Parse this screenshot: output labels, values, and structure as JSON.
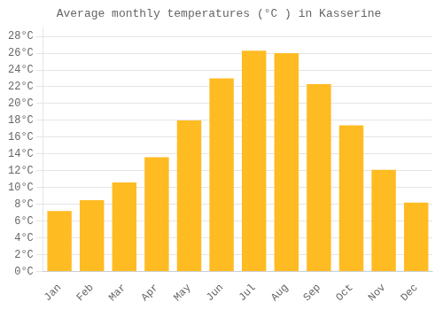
{
  "chart_data": {
    "type": "bar",
    "title": "Average monthly temperatures (°C ) in Kasserine",
    "categories": [
      "Jan",
      "Feb",
      "Mar",
      "Apr",
      "May",
      "Jun",
      "Jul",
      "Aug",
      "Sep",
      "Oct",
      "Nov",
      "Dec"
    ],
    "values": [
      7.2,
      8.5,
      10.6,
      13.6,
      18.0,
      23.0,
      26.3,
      26.0,
      22.3,
      17.4,
      12.1,
      8.2
    ],
    "color": "#FFBB22",
    "ylim": [
      0,
      29
    ],
    "yticks": [
      {
        "value": 0,
        "label": "0°C"
      },
      {
        "value": 2,
        "label": "2°C"
      },
      {
        "value": 4,
        "label": "4°C"
      },
      {
        "value": 6,
        "label": "6°C"
      },
      {
        "value": 8,
        "label": "8°C"
      },
      {
        "value": 10,
        "label": "10°C"
      },
      {
        "value": 12,
        "label": "12°C"
      },
      {
        "value": 14,
        "label": "14°C"
      },
      {
        "value": 16,
        "label": "16°C"
      },
      {
        "value": 18,
        "label": "18°C"
      },
      {
        "value": 20,
        "label": "20°C"
      },
      {
        "value": 22,
        "label": "22°C"
      },
      {
        "value": 24,
        "label": "24°C"
      },
      {
        "value": 26,
        "label": "26°C"
      },
      {
        "value": 28,
        "label": "28°C"
      }
    ],
    "grid": true
  }
}
